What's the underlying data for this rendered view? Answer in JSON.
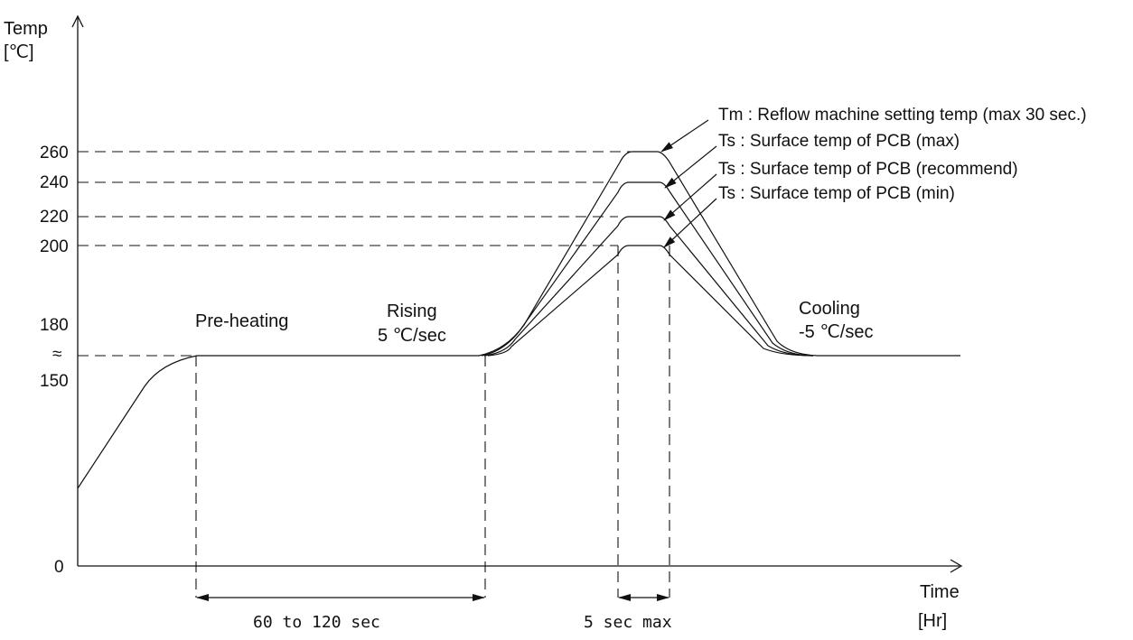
{
  "axes": {
    "y_title_line1": "Temp",
    "y_title_line2": "[℃]",
    "x_title_line1": "Time",
    "x_title_line2": "[Hr]",
    "y_ticks": [
      "260",
      "240",
      "220",
      "200",
      "180",
      "≈",
      "150",
      "0"
    ]
  },
  "phases": {
    "preheating": "Pre-heating",
    "rising_line1": "Rising",
    "rising_line2": "5 ℃/sec",
    "cooling_line1": "Cooling",
    "cooling_line2": "-5 ℃/sec"
  },
  "annotations": [
    "Tm : Reflow machine setting temp (max 30 sec.)",
    "Ts : Surface temp of PCB (max)",
    "Ts : Surface temp of PCB (recommend)",
    "Ts : Surface temp of PCB (min)"
  ],
  "durations": {
    "preheat": "60 to 120 sec",
    "peak": "5 sec max"
  },
  "profile_peaks_c": [
    260,
    240,
    220,
    200
  ],
  "preheat_plateau_c": "150-180"
}
